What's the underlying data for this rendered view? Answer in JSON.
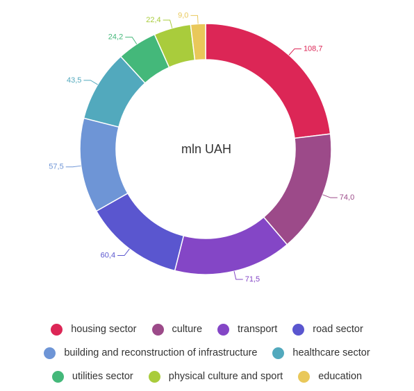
{
  "chart_data": {
    "type": "pie",
    "donut": true,
    "center_label": "mln UAH",
    "categories": [
      "housing sector",
      "culture",
      "transport",
      "road sector",
      "building and reconstruction of infrastructure",
      "healthcare sector",
      "utilities sector",
      "physical culture and sport",
      "education"
    ],
    "values": [
      108.7,
      74.0,
      71.5,
      60.4,
      57.5,
      43.5,
      24.2,
      22.4,
      9.0
    ],
    "value_labels": [
      "108,7",
      "74,0",
      "71,5",
      "60,4",
      "57,5",
      "43,5",
      "24,2",
      "22,4",
      "9,0"
    ],
    "colors": [
      "#dc2656",
      "#9c4a89",
      "#8446c6",
      "#5a56cf",
      "#6e95d6",
      "#52a9bd",
      "#44b87a",
      "#a9cc3c",
      "#e9c85a"
    ],
    "legend_placement": "bottom"
  }
}
